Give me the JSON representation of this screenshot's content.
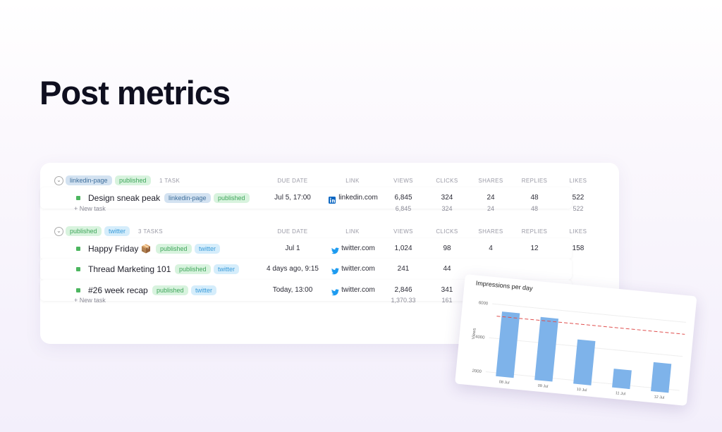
{
  "header": {
    "title": "Post metrics"
  },
  "table": {
    "groups": [
      {
        "tags": [
          {
            "label": "linkedin-page",
            "color": "#3f6f9c",
            "bg": "#d3e2f1"
          },
          {
            "label": "published",
            "color": "#3ea55a",
            "bg": "#d8f3de"
          }
        ],
        "count": "1 TASK",
        "headers": [
          "DUE DATE",
          "LINK",
          "VIEWS",
          "CLICKS",
          "SHARES",
          "REPLIES",
          "LIKES"
        ],
        "rows": [
          {
            "name": "Design sneak peak",
            "tags": [
              {
                "label": "linkedin-page",
                "color": "#3f6f9c",
                "bg": "#d3e2f1"
              },
              {
                "label": "published",
                "color": "#3ea55a",
                "bg": "#d8f3de"
              }
            ],
            "cells": [
              "Jul 5, 17:00",
              "linkedin.com",
              "6,845",
              "324",
              "24",
              "48",
              "522"
            ],
            "icon": "linkedin"
          }
        ],
        "add": "+ New task",
        "totals": [
          "6,845",
          "324",
          "24",
          "48",
          "522"
        ]
      },
      {
        "tags": [
          {
            "label": "published",
            "color": "#3ea55a",
            "bg": "#d8f3de"
          },
          {
            "label": "twitter",
            "color": "#3a9bd9",
            "bg": "#d5edfb"
          }
        ],
        "count": "3 TASKS",
        "headers": [
          "DUE DATE",
          "LINK",
          "VIEWS",
          "CLICKS",
          "SHARES",
          "REPLIES",
          "LIKES"
        ],
        "rows": [
          {
            "name": "Happy Friday 📦",
            "tags": [
              {
                "label": "published",
                "color": "#3ea55a",
                "bg": "#d8f3de"
              },
              {
                "label": "twitter",
                "color": "#3a9bd9",
                "bg": "#d5edfb"
              }
            ],
            "cells": [
              "Jul 1",
              "twitter.com",
              "1,024",
              "98",
              "4",
              "12",
              "158"
            ],
            "icon": "twitter"
          },
          {
            "name": "Thread Marketing 101",
            "tags": [
              {
                "label": "published",
                "color": "#3ea55a",
                "bg": "#d8f3de"
              },
              {
                "label": "twitter",
                "color": "#3a9bd9",
                "bg": "#d5edfb"
              }
            ],
            "cells": [
              "4 days ago, 9:15",
              "twitter.com",
              "241",
              "44"
            ],
            "icon": "twitter"
          },
          {
            "name": "#26 week recap",
            "tags": [
              {
                "label": "published",
                "color": "#3ea55a",
                "bg": "#d8f3de"
              },
              {
                "label": "twitter",
                "color": "#3a9bd9",
                "bg": "#d5edfb"
              }
            ],
            "cells": [
              "Today, 13:00",
              "twitter.com",
              "2,846",
              "341"
            ],
            "icon": "twitter"
          }
        ],
        "add": "+ New task",
        "totals": [
          "1,370.33",
          "161"
        ]
      }
    ]
  },
  "chart_data": {
    "type": "bar",
    "title": "Impressions per day",
    "y_label": "Views",
    "categories": [
      "08 Jul",
      "09 Jul",
      "10 Jul",
      "11 Jul",
      "12 Jul"
    ],
    "values": [
      5600,
      5500,
      4400,
      2900,
      3500
    ],
    "color": "#7eb3ea",
    "reference_value": 5300,
    "reference_color": "#e0504f",
    "ylim": [
      1800,
      6500
    ],
    "yticks": [
      2000,
      4000,
      6000
    ],
    "grid": true
  }
}
